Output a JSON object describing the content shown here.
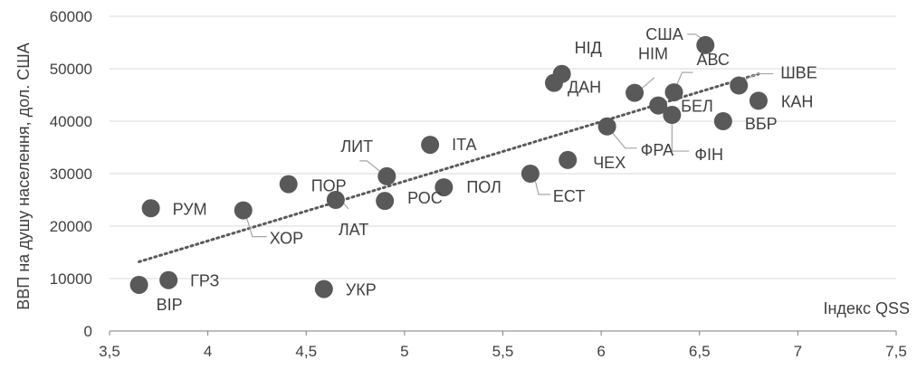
{
  "chart_data": {
    "type": "scatter",
    "title": "",
    "xlabel": "Індекс QSS",
    "ylabel": "ВВП на душу населення, дол. США",
    "xlim": [
      3.5,
      7.5
    ],
    "ylim": [
      0,
      60000
    ],
    "xticks": [
      "3,5",
      "4",
      "4,5",
      "5",
      "5,5",
      "6",
      "6,5",
      "7",
      "7,5"
    ],
    "yticks": [
      "0",
      "10000",
      "20000",
      "30000",
      "40000",
      "50000",
      "60000"
    ],
    "grid": "horizontal",
    "marker_color": "#595959",
    "trendline": {
      "style": "dotted",
      "color": "#595959",
      "from": {
        "x": 3.65,
        "y": 13200
      },
      "to": {
        "x": 6.8,
        "y": 49000
      }
    },
    "points": [
      {
        "label": "ВІР",
        "x": 3.65,
        "y": 8800
      },
      {
        "label": "РУМ",
        "x": 3.71,
        "y": 23400
      },
      {
        "label": "ГРЗ",
        "x": 3.8,
        "y": 9700
      },
      {
        "label": "ХОР",
        "x": 4.18,
        "y": 23000
      },
      {
        "label": "ПОР",
        "x": 4.41,
        "y": 28000
      },
      {
        "label": "УКР",
        "x": 4.59,
        "y": 8000
      },
      {
        "label": "ЛАТ",
        "x": 4.65,
        "y": 25000
      },
      {
        "label": "РОС",
        "x": 4.9,
        "y": 24800
      },
      {
        "label": "ЛИТ",
        "x": 4.91,
        "y": 29500
      },
      {
        "label": "ІТА",
        "x": 5.13,
        "y": 35500
      },
      {
        "label": "ПОЛ",
        "x": 5.2,
        "y": 27400
      },
      {
        "label": "ЕСТ",
        "x": 5.64,
        "y": 30000
      },
      {
        "label": "ДАН",
        "x": 5.76,
        "y": 47300
      },
      {
        "label": "НІД",
        "x": 5.8,
        "y": 49000
      },
      {
        "label": "ЧЕХ",
        "x": 5.83,
        "y": 32600
      },
      {
        "label": "ФРА",
        "x": 6.03,
        "y": 39000
      },
      {
        "label": "НІМ",
        "x": 6.17,
        "y": 45400
      },
      {
        "label": "БЕЛ",
        "x": 6.29,
        "y": 43000
      },
      {
        "label": "ФІН",
        "x": 6.36,
        "y": 41200
      },
      {
        "label": "АВС",
        "x": 6.37,
        "y": 45500
      },
      {
        "label": "США",
        "x": 6.53,
        "y": 54500
      },
      {
        "label": "ВБР",
        "x": 6.62,
        "y": 40000
      },
      {
        "label": "ШВЕ",
        "x": 6.7,
        "y": 46800
      },
      {
        "label": "КАН",
        "x": 6.8,
        "y": 43900
      }
    ]
  }
}
